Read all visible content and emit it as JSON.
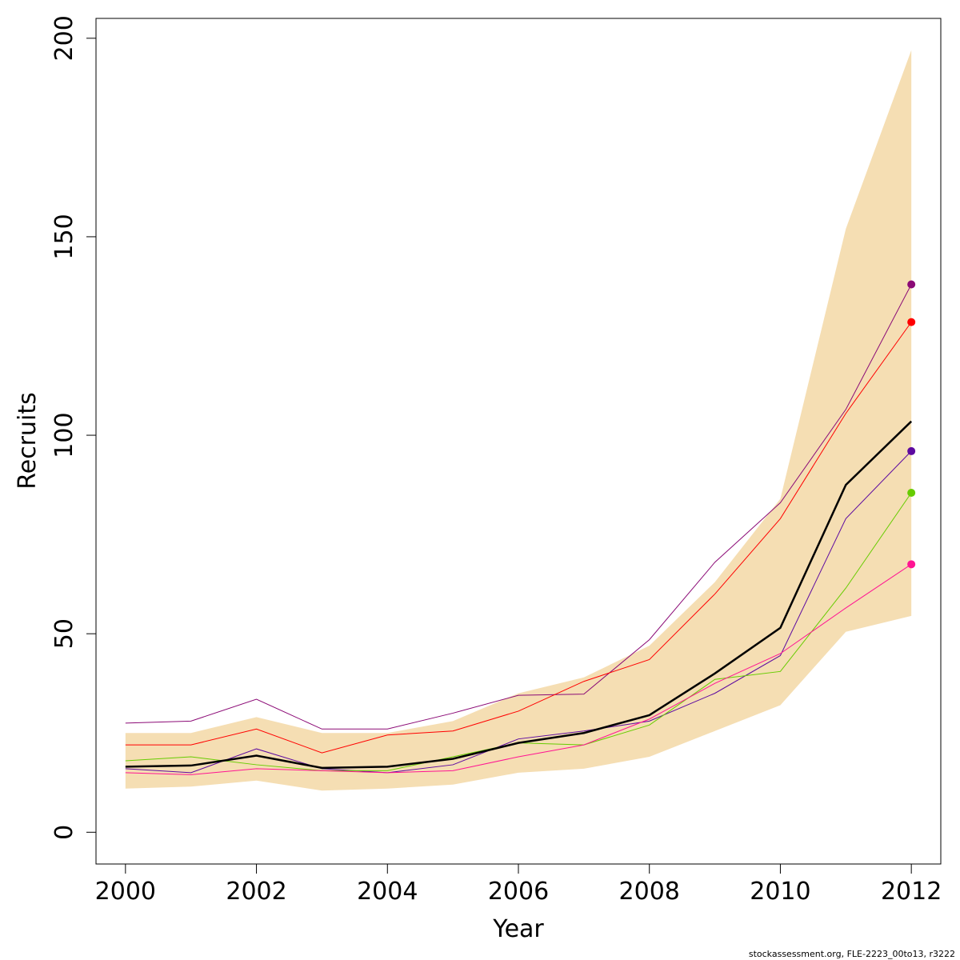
{
  "chart_data": {
    "type": "line",
    "xlabel": "Year",
    "ylabel": "Recruits",
    "xlim": [
      1999.55,
      2012.45
    ],
    "ylim": [
      -8,
      205
    ],
    "x_ticks": [
      2000,
      2002,
      2004,
      2006,
      2008,
      2010,
      2012
    ],
    "y_ticks": [
      0,
      50,
      100,
      150,
      200
    ],
    "x": [
      2000,
      2001,
      2002,
      2003,
      2004,
      2005,
      2006,
      2007,
      2008,
      2009,
      2010,
      2011,
      2012
    ],
    "band": {
      "color": "#f5deb3",
      "upper": [
        25,
        25,
        29,
        25,
        25,
        28,
        35,
        39,
        47,
        63,
        84,
        152,
        197
      ],
      "lower": [
        11,
        11.5,
        13,
        10.5,
        11,
        12,
        15,
        16,
        19,
        25.5,
        32,
        50.5,
        54.5
      ]
    },
    "main_series": {
      "color": "#000000",
      "values": [
        16.5,
        16.8,
        19.3,
        16.2,
        16.5,
        18.5,
        22.5,
        25,
        29.5,
        40,
        51.5,
        87.5,
        103.5
      ]
    },
    "series": [
      {
        "color": "#8b0a76",
        "values": [
          27.5,
          28,
          33.5,
          26,
          26,
          30,
          34.5,
          34.8,
          48.5,
          68,
          83,
          106.5,
          138
        ]
      },
      {
        "color": "#ff0000",
        "values": [
          22,
          22,
          26,
          20,
          24.5,
          25.5,
          30.5,
          38,
          43.5,
          60,
          79,
          105.5,
          128.5
        ]
      },
      {
        "color": "#5d0aa0",
        "values": [
          16,
          15,
          21,
          16,
          15,
          17,
          23.5,
          25.5,
          28,
          35,
          44.5,
          79,
          96
        ]
      },
      {
        "color": "#66cc00",
        "values": [
          18,
          19,
          17,
          15.5,
          15.5,
          19,
          22.5,
          22,
          27,
          38.5,
          40.5,
          61.5,
          85.5
        ]
      },
      {
        "color": "#ff1493",
        "values": [
          15,
          14.5,
          16,
          15.5,
          15,
          15.5,
          19,
          22,
          28.5,
          37.5,
          45,
          56.5,
          67.5
        ]
      }
    ]
  },
  "footer_text": "stockassessment.org, FLE-2223_00to13, r3222"
}
